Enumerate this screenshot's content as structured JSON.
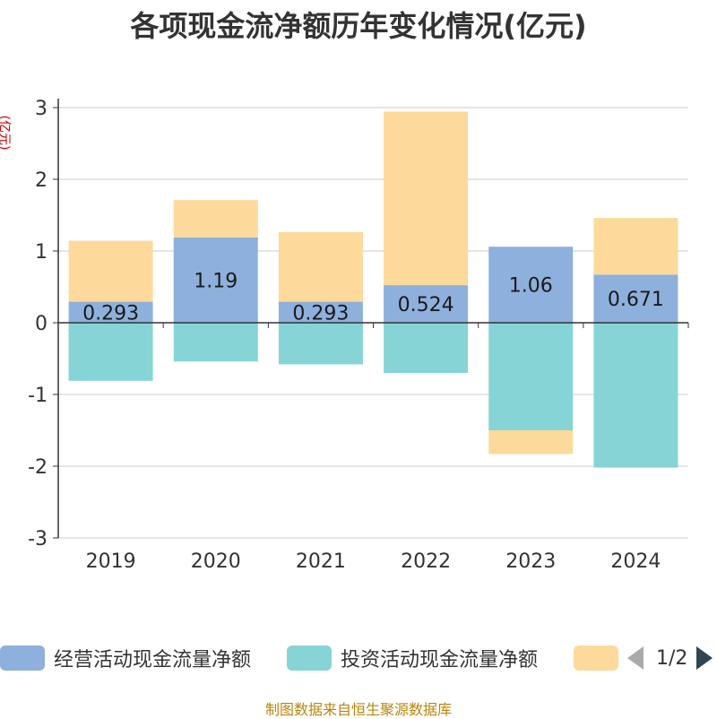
{
  "title": "各项现金流净额历年变化情况(亿元)",
  "unit_label": "(亿元)",
  "source": "制图数据来自恒生聚源数据库",
  "legend": {
    "page_text": "1/2"
  },
  "colors": {
    "operating": "#8eb0dc",
    "investing": "#86d4d6",
    "financing": "#fdd99b"
  },
  "chart_data": {
    "type": "bar",
    "stacked": true,
    "categories": [
      "2019",
      "2020",
      "2021",
      "2022",
      "2023",
      "2024"
    ],
    "ylim": [
      -3,
      3
    ],
    "yticks": [
      3,
      2,
      1,
      0,
      -1,
      -2,
      -3
    ],
    "series": [
      {
        "name": "经营活动现金流量净额",
        "key": "operating",
        "values": [
          0.293,
          1.19,
          0.293,
          0.524,
          1.06,
          0.671
        ],
        "labels": [
          "0.293",
          "1.19",
          "0.293",
          "0.524",
          "1.06",
          "0.671"
        ]
      },
      {
        "name": "投资活动现金流量净额",
        "key": "investing",
        "values": [
          -0.81,
          -0.54,
          -0.58,
          -0.7,
          -1.5,
          -2.02
        ]
      },
      {
        "name": "",
        "key": "financing",
        "values": [
          0.85,
          0.52,
          0.97,
          2.42,
          -0.33,
          0.79
        ]
      }
    ]
  }
}
